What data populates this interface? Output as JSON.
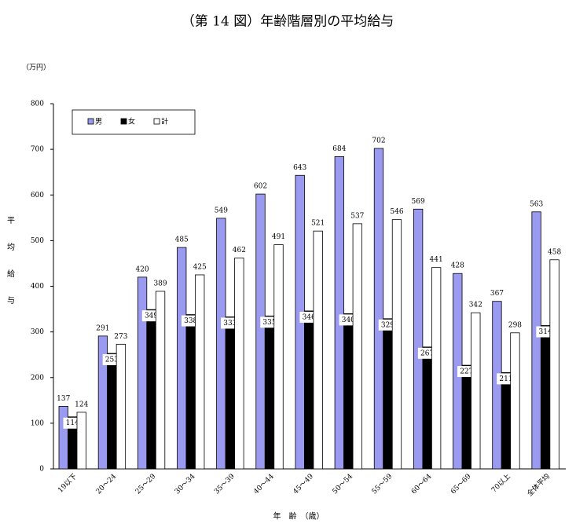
{
  "chart_data": {
    "type": "bar",
    "title": "（第 14 図）年齢階層別の平均給与",
    "unit_label": "（万円）",
    "y_label": "平均給与",
    "x_label": "年　齢　（歳）",
    "categories": [
      "19以下",
      "20～24",
      "25～29",
      "30～34",
      "35～39",
      "40～44",
      "45～49",
      "50～54",
      "55～59",
      "60～64",
      "65～69",
      "70以上",
      "全体平均"
    ],
    "series": [
      {
        "name": "男",
        "color": "#9a9af0",
        "values": [
          137,
          291,
          420,
          485,
          549,
          602,
          643,
          684,
          702,
          569,
          428,
          367,
          563
        ]
      },
      {
        "name": "女",
        "color": "#000000",
        "values": [
          114,
          253,
          349,
          338,
          333,
          335,
          346,
          340,
          329,
          267,
          227,
          211,
          314
        ]
      },
      {
        "name": "計",
        "color": "#ffffff",
        "values": [
          124,
          273,
          389,
          425,
          462,
          491,
          521,
          537,
          546,
          441,
          342,
          298,
          458
        ]
      }
    ],
    "ylim": [
      0,
      800
    ],
    "yticks": [
      0,
      100,
      200,
      300,
      400,
      500,
      600,
      700,
      800
    ],
    "grid": false
  }
}
